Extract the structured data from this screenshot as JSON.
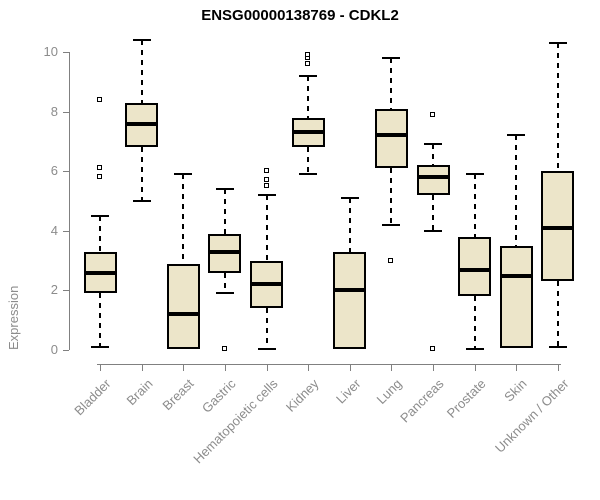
{
  "chart_data": {
    "type": "boxplot",
    "title": "ENSG00000138769 - CDKL2",
    "ylabel": "Expression",
    "xlabel": "",
    "ylim": [
      0,
      10
    ],
    "yticks": [
      0,
      2,
      4,
      6,
      8,
      10
    ],
    "grid": false,
    "legend": false,
    "x_tick_rotation": 45,
    "categories": [
      "Bladder",
      "Brain",
      "Breast",
      "Gastric",
      "Hematopoietic cells",
      "Kidney",
      "Liver",
      "Lung",
      "Pancreas",
      "Prostate",
      "Skin",
      "Unknown / Other"
    ],
    "series": [
      {
        "name": "Bladder",
        "min": 0.1,
        "q1": 1.9,
        "median": 2.6,
        "q3": 3.3,
        "max": 4.5,
        "outliers": [
          5.8,
          6.1,
          8.4
        ]
      },
      {
        "name": "Brain",
        "min": 5.0,
        "q1": 6.8,
        "median": 7.6,
        "q3": 8.3,
        "max": 10.4,
        "outliers": []
      },
      {
        "name": "Breast",
        "min": 0.05,
        "q1": 0.05,
        "median": 1.2,
        "q3": 2.9,
        "max": 5.9,
        "outliers": []
      },
      {
        "name": "Gastric",
        "min": 1.9,
        "q1": 2.6,
        "median": 3.3,
        "q3": 3.9,
        "max": 5.4,
        "outliers": [
          0.05
        ]
      },
      {
        "name": "Hematopoietic cells",
        "min": 0.05,
        "q1": 1.4,
        "median": 2.2,
        "q3": 3.0,
        "max": 5.2,
        "outliers": [
          5.5,
          5.7,
          6.0
        ]
      },
      {
        "name": "Kidney",
        "min": 5.9,
        "q1": 6.8,
        "median": 7.3,
        "q3": 7.8,
        "max": 9.2,
        "outliers": [
          9.6,
          9.8,
          9.9
        ]
      },
      {
        "name": "Liver",
        "min": 0.05,
        "q1": 0.05,
        "median": 2.0,
        "q3": 3.3,
        "max": 5.1,
        "outliers": []
      },
      {
        "name": "Lung",
        "min": 4.2,
        "q1": 6.1,
        "median": 7.2,
        "q3": 8.1,
        "max": 9.8,
        "outliers": [
          3.0
        ]
      },
      {
        "name": "Pancreas",
        "min": 4.0,
        "q1": 5.2,
        "median": 5.8,
        "q3": 6.2,
        "max": 6.9,
        "outliers": [
          0.05,
          7.9
        ]
      },
      {
        "name": "Prostate",
        "min": 0.05,
        "q1": 1.8,
        "median": 2.7,
        "q3": 3.8,
        "max": 5.9,
        "outliers": []
      },
      {
        "name": "Skin",
        "min": 0.05,
        "q1": 0.05,
        "median": 2.5,
        "q3": 3.5,
        "max": 7.2,
        "outliers": []
      },
      {
        "name": "Unknown / Other",
        "min": 0.1,
        "q1": 2.3,
        "median": 4.1,
        "q3": 6.0,
        "max": 10.3,
        "outliers": []
      }
    ],
    "colors": {
      "box_fill": "#ECE5C9",
      "box_border": "#000000",
      "median": "#000000",
      "axis_line": "#808080",
      "axis_text": "#8C8C8C",
      "title_text": "#000000",
      "background": "#FFFFFF"
    }
  }
}
